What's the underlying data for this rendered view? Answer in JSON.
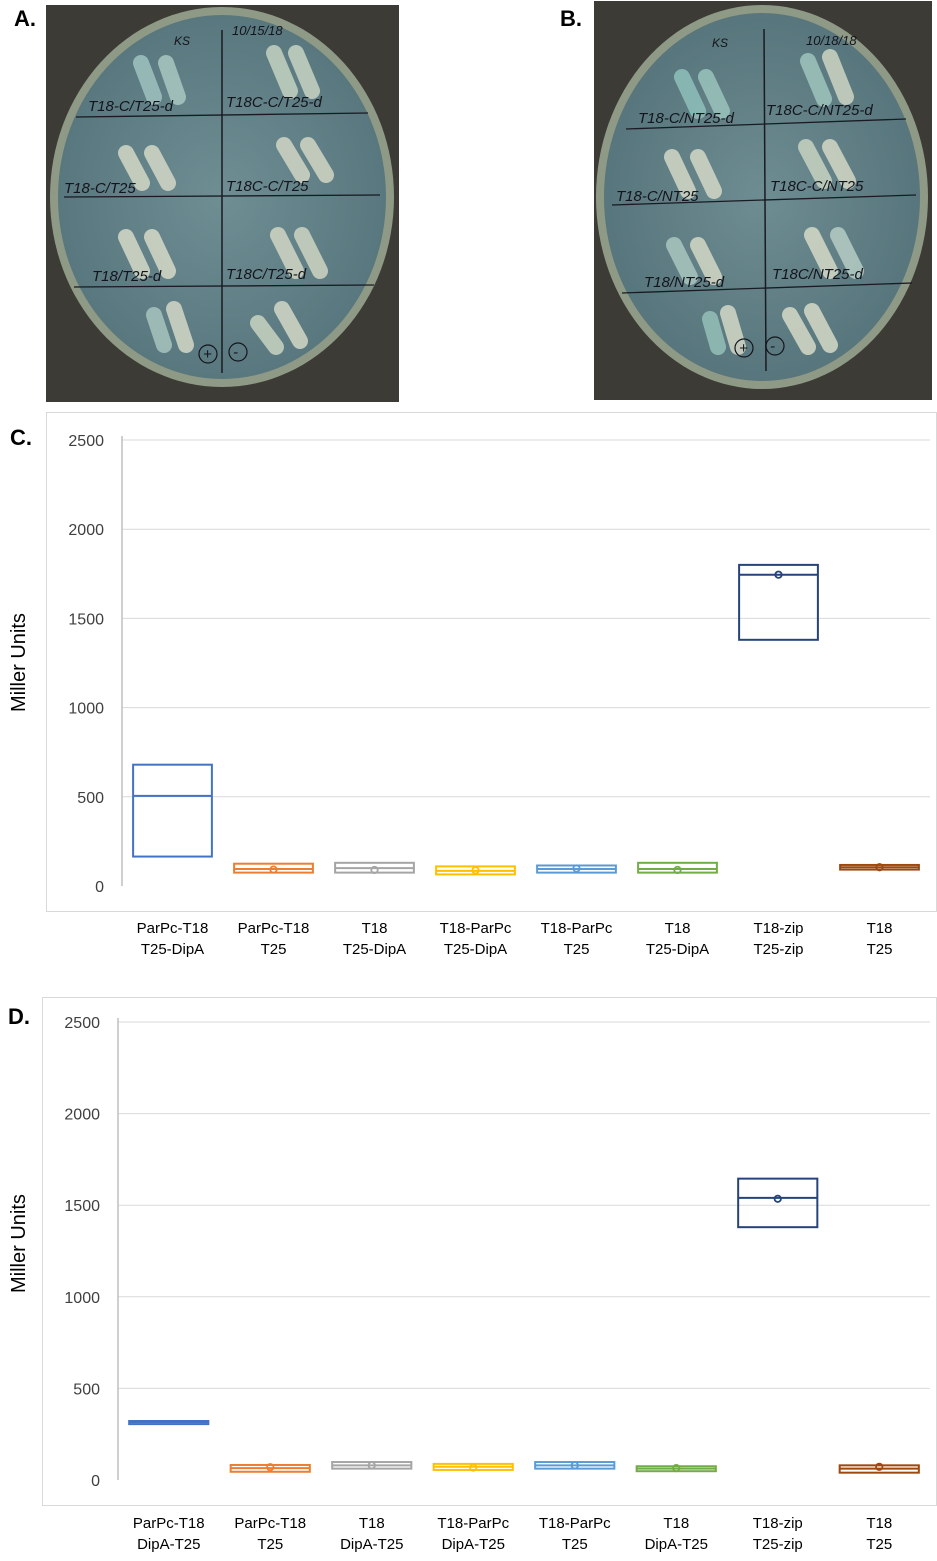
{
  "panels": {
    "a": {
      "label": "A."
    },
    "b": {
      "label": "B."
    },
    "c": {
      "label": "C."
    },
    "d": {
      "label": "D."
    }
  },
  "plate_a": {
    "corner_text": "KS",
    "date": "10/15/18",
    "labels": [
      "T18-C/T25-d",
      "T18C-C/T25-d",
      "T18-C/T25",
      "T18C-C/T25",
      "T18/T25-d",
      "T18C/T25-d",
      "+",
      "-"
    ]
  },
  "plate_b": {
    "corner_text": "KS",
    "date": "10/18/18",
    "labels": [
      "T18-C/NT25-d",
      "T18C-C/NT25-d",
      "T18-C/NT25",
      "T18C-C/NT25",
      "T18/NT25-d",
      "T18C/NT25-d",
      "+",
      "-"
    ]
  },
  "chart_data": [
    {
      "type": "box",
      "panel": "C.",
      "ylabel": "Miller Units",
      "ylim": [
        0,
        2500
      ],
      "yticks": [
        0,
        500,
        1000,
        1500,
        2000,
        2500
      ],
      "grid": true,
      "categories": [
        [
          "ParPc-T18",
          "T25-DipA"
        ],
        [
          "ParPc-T18",
          "T25"
        ],
        [
          "T18",
          "T25-DipA"
        ],
        [
          "T18-ParPc",
          "T25-DipA"
        ],
        [
          "T18-ParPc",
          "T25"
        ],
        [
          "T18",
          "T25-DipA"
        ],
        [
          "T18-zip",
          "T25-zip"
        ],
        [
          "T18",
          "T25"
        ]
      ],
      "colors": [
        "#4472c4",
        "#ed7d31",
        "#a5a5a5",
        "#ffc000",
        "#5b9bd5",
        "#70ad47",
        "#264478",
        "#9e480e"
      ],
      "boxes": [
        {
          "min": 165,
          "q1": 165,
          "median": 505,
          "q3": 680,
          "max": 680,
          "mean": null
        },
        {
          "min": 75,
          "q1": 75,
          "median": 95,
          "q3": 125,
          "max": 125,
          "mean": 92
        },
        {
          "min": 75,
          "q1": 75,
          "median": 100,
          "q3": 130,
          "max": 130,
          "mean": 90
        },
        {
          "min": 65,
          "q1": 65,
          "median": 85,
          "q3": 110,
          "max": 110,
          "mean": 88
        },
        {
          "min": 75,
          "q1": 75,
          "median": 95,
          "q3": 115,
          "max": 115,
          "mean": 98
        },
        {
          "min": 75,
          "q1": 75,
          "median": 95,
          "q3": 130,
          "max": 130,
          "mean": 90
        },
        {
          "min": 1380,
          "q1": 1380,
          "median": 1745,
          "q3": 1800,
          "max": 1800,
          "mean": 1745
        },
        {
          "min": 92,
          "q1": 92,
          "median": 105,
          "q3": 118,
          "max": 118,
          "mean": 105
        }
      ]
    },
    {
      "type": "box",
      "panel": "D.",
      "ylabel": "Miller Units",
      "ylim": [
        0,
        2500
      ],
      "yticks": [
        0,
        500,
        1000,
        1500,
        2000,
        2500
      ],
      "grid": true,
      "categories": [
        [
          "ParPc-T18",
          "DipA-T25"
        ],
        [
          "ParPc-T18",
          "T25"
        ],
        [
          "T18",
          "DipA-T25"
        ],
        [
          "T18-ParPc",
          "DipA-T25"
        ],
        [
          "T18-ParPc",
          "T25"
        ],
        [
          "T18",
          "DipA-T25"
        ],
        [
          "T18-zip",
          "T25-zip"
        ],
        [
          "T18",
          "T25"
        ]
      ],
      "colors": [
        "#4472c4",
        "#ed7d31",
        "#a5a5a5",
        "#ffc000",
        "#5b9bd5",
        "#70ad47",
        "#264478",
        "#9e480e"
      ],
      "boxes": [
        {
          "min": 305,
          "q1": 305,
          "median": 315,
          "q3": 322,
          "max": 322,
          "mean": null
        },
        {
          "min": 45,
          "q1": 45,
          "median": 65,
          "q3": 82,
          "max": 82,
          "mean": 70
        },
        {
          "min": 62,
          "q1": 62,
          "median": 80,
          "q3": 98,
          "max": 98,
          "mean": 80
        },
        {
          "min": 55,
          "q1": 55,
          "median": 72,
          "q3": 88,
          "max": 88,
          "mean": 68
        },
        {
          "min": 62,
          "q1": 62,
          "median": 80,
          "q3": 98,
          "max": 98,
          "mean": 80
        },
        {
          "min": 48,
          "q1": 48,
          "median": 62,
          "q3": 75,
          "max": 75,
          "mean": 65
        },
        {
          "min": 1380,
          "q1": 1380,
          "median": 1540,
          "q3": 1645,
          "max": 1645,
          "mean": 1535
        },
        {
          "min": 40,
          "q1": 40,
          "median": 62,
          "q3": 80,
          "max": 80,
          "mean": 72
        }
      ]
    }
  ]
}
